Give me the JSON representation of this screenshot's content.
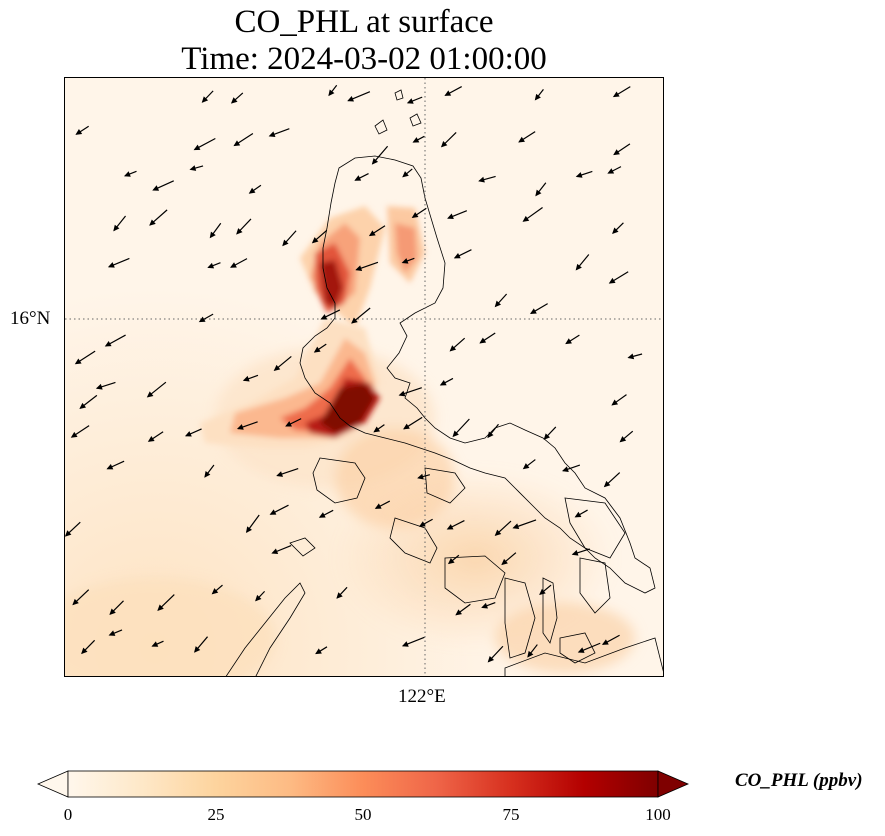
{
  "title": {
    "line1": "CO_PHL at surface",
    "line2": "Time: 2024-03-02 01:00:00"
  },
  "map": {
    "gridlines": {
      "latitude_label": "16°N",
      "longitude_label": "122°E"
    },
    "variable": "CO_PHL",
    "units": "ppbv",
    "colormap": "OrRd",
    "features": [
      "coastlines",
      "wind-vectors",
      "dotted-gridlines"
    ]
  },
  "colorbar": {
    "label": "CO_PHL (ppbv)",
    "ticks": [
      "0",
      "25",
      "50",
      "75",
      "100"
    ],
    "min": 0,
    "max": 100,
    "extend": "both",
    "colors": [
      "#fff7ec",
      "#fee8c8",
      "#fdd49e",
      "#fdbb84",
      "#fc8d59",
      "#ef6548",
      "#d7301f",
      "#b30000",
      "#7f0000"
    ]
  }
}
